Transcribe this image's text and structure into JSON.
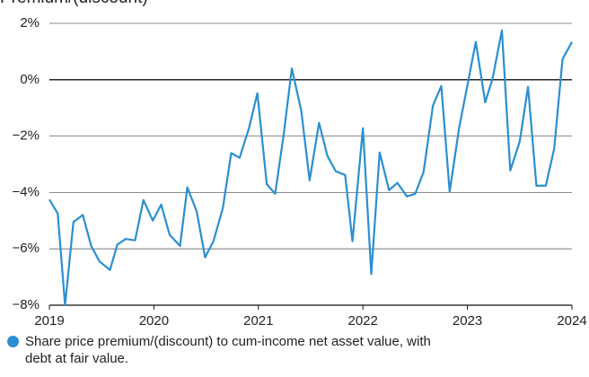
{
  "chart_data": {
    "type": "line",
    "title": "Premium/(discount)",
    "x": [
      2019.0,
      2019.08,
      2019.15,
      2019.23,
      2019.32,
      2019.4,
      2019.48,
      2019.58,
      2019.65,
      2019.73,
      2019.82,
      2019.9,
      2019.99,
      2020.07,
      2020.15,
      2020.25,
      2020.32,
      2020.41,
      2020.49,
      2020.57,
      2020.66,
      2020.74,
      2020.82,
      2020.91,
      2020.99,
      2021.08,
      2021.16,
      2021.24,
      2021.32,
      2021.41,
      2021.49,
      2021.58,
      2021.66,
      2021.74,
      2021.83,
      2021.9,
      2022.0,
      2022.08,
      2022.16,
      2022.25,
      2022.33,
      2022.42,
      2022.5,
      2022.58,
      2022.67,
      2022.75,
      2022.83,
      2022.92,
      2023.0,
      2023.08,
      2023.17,
      2023.24,
      2023.33,
      2023.41,
      2023.5,
      2023.58,
      2023.66,
      2023.75,
      2023.83,
      2023.91,
      2024.0
    ],
    "series": [
      {
        "name": "Share price premium/(discount) to  cum-income net asset value, with debt at fair value.",
        "color": "#2b8fd0",
        "values": [
          -4.25,
          -4.75,
          -8.0,
          -5.05,
          -4.8,
          -5.9,
          -6.45,
          -6.75,
          -5.85,
          -5.65,
          -5.7,
          -4.27,
          -5.0,
          -4.43,
          -5.5,
          -5.9,
          -3.82,
          -4.68,
          -6.3,
          -5.73,
          -4.55,
          -2.6,
          -2.77,
          -1.72,
          -0.48,
          -3.7,
          -4.05,
          -2.0,
          0.4,
          -1.1,
          -3.57,
          -1.53,
          -2.7,
          -3.25,
          -3.38,
          -5.73,
          -1.72,
          -6.9,
          -2.58,
          -3.92,
          -3.66,
          -4.14,
          -4.05,
          -3.28,
          -0.92,
          -0.22,
          -3.98,
          -1.72,
          -0.2,
          1.34,
          -0.8,
          0.03,
          1.75,
          -3.22,
          -2.2,
          -0.25,
          -3.76,
          -3.76,
          -2.45,
          0.73,
          1.34
        ]
      }
    ],
    "xlim": [
      2019,
      2024
    ],
    "xticks": [
      2019,
      2020,
      2021,
      2022,
      2023,
      2024
    ],
    "ylim": [
      -8,
      2
    ],
    "yticks": [
      {
        "value": -8,
        "label": "−8%"
      },
      {
        "value": -6,
        "label": "−6%"
      },
      {
        "value": -4,
        "label": "−4%"
      },
      {
        "value": -2,
        "label": "−2%"
      },
      {
        "value": 0,
        "label": "0%"
      },
      {
        "value": 2,
        "label": "2%"
      }
    ],
    "grid": true
  }
}
